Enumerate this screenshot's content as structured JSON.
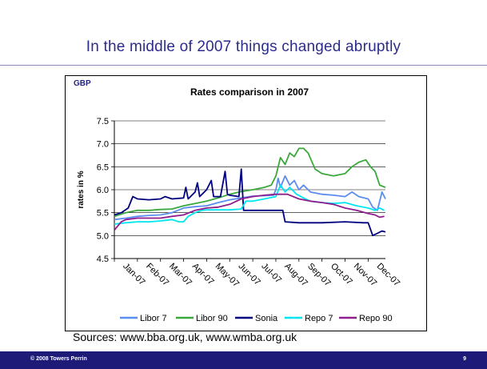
{
  "slide": {
    "title": "In the middle of 2007 things changed abruptly",
    "sources": "Sources: www.bba.org.uk, www.wmba.org.uk",
    "footer_left": "© 2008 Towers Perrin",
    "page_number": "9"
  },
  "chart_data": {
    "type": "line",
    "title": "Rates comparison in 2007",
    "corner_label": "GBP",
    "ylabel": "rates in %",
    "xlabel": "",
    "ylim": [
      4.5,
      7.5
    ],
    "yticks": [
      "4.5",
      "5.0",
      "5.5",
      "6.0",
      "6.5",
      "7.0",
      "7.5"
    ],
    "categories": [
      "Jan-07",
      "Feb-07",
      "Mar-07",
      "Apr-07",
      "May-07",
      "Jun-07",
      "Jul-07",
      "Aug-07",
      "Sep-07",
      "Oct-07",
      "Nov-07",
      "Dec-07"
    ],
    "grid": "horizontal",
    "legend": "bottom",
    "colors": {
      "Libor 7": "#5b8cf0",
      "Libor 90": "#3aa83a",
      "Sonia": "#000080",
      "Repo 7": "#00e6f0",
      "Repo 90": "#8e1e8e"
    },
    "series": [
      {
        "name": "Libor 7",
        "points": [
          [
            0,
            5.35
          ],
          [
            0.5,
            5.38
          ],
          [
            1,
            5.42
          ],
          [
            1.5,
            5.44
          ],
          [
            2,
            5.45
          ],
          [
            2.5,
            5.5
          ],
          [
            3,
            5.6
          ],
          [
            3.5,
            5.63
          ],
          [
            4,
            5.65
          ],
          [
            4.5,
            5.72
          ],
          [
            5,
            5.78
          ],
          [
            5.5,
            5.82
          ],
          [
            6,
            5.86
          ],
          [
            6.5,
            5.87
          ],
          [
            6.9,
            5.88
          ],
          [
            7.0,
            6.0
          ],
          [
            7.1,
            6.25
          ],
          [
            7.2,
            6.05
          ],
          [
            7.4,
            6.3
          ],
          [
            7.6,
            6.1
          ],
          [
            7.8,
            6.2
          ],
          [
            8.0,
            6.0
          ],
          [
            8.2,
            6.1
          ],
          [
            8.5,
            5.95
          ],
          [
            9,
            5.9
          ],
          [
            9.5,
            5.88
          ],
          [
            10,
            5.85
          ],
          [
            10.3,
            5.95
          ],
          [
            10.6,
            5.85
          ],
          [
            11,
            5.8
          ],
          [
            11.2,
            5.62
          ],
          [
            11.4,
            5.55
          ],
          [
            11.6,
            5.95
          ],
          [
            11.75,
            5.8
          ]
        ]
      },
      {
        "name": "Libor 90",
        "points": [
          [
            0,
            5.42
          ],
          [
            0.5,
            5.5
          ],
          [
            1,
            5.55
          ],
          [
            1.5,
            5.55
          ],
          [
            2,
            5.57
          ],
          [
            2.5,
            5.58
          ],
          [
            3,
            5.65
          ],
          [
            3.5,
            5.7
          ],
          [
            4,
            5.75
          ],
          [
            4.5,
            5.82
          ],
          [
            5,
            5.9
          ],
          [
            5.5,
            5.96
          ],
          [
            6,
            6.0
          ],
          [
            6.5,
            6.05
          ],
          [
            6.8,
            6.1
          ],
          [
            7.0,
            6.3
          ],
          [
            7.2,
            6.7
          ],
          [
            7.4,
            6.55
          ],
          [
            7.6,
            6.8
          ],
          [
            7.8,
            6.72
          ],
          [
            8.0,
            6.9
          ],
          [
            8.2,
            6.9
          ],
          [
            8.4,
            6.8
          ],
          [
            8.7,
            6.45
          ],
          [
            9,
            6.35
          ],
          [
            9.5,
            6.3
          ],
          [
            10,
            6.35
          ],
          [
            10.3,
            6.5
          ],
          [
            10.6,
            6.6
          ],
          [
            10.9,
            6.65
          ],
          [
            11.1,
            6.5
          ],
          [
            11.3,
            6.4
          ],
          [
            11.5,
            6.1
          ],
          [
            11.75,
            6.05
          ]
        ]
      },
      {
        "name": "Sonia",
        "points": [
          [
            0,
            5.45
          ],
          [
            0.3,
            5.5
          ],
          [
            0.6,
            5.6
          ],
          [
            0.8,
            5.85
          ],
          [
            1,
            5.8
          ],
          [
            1.5,
            5.78
          ],
          [
            2,
            5.8
          ],
          [
            2.2,
            5.85
          ],
          [
            2.5,
            5.8
          ],
          [
            3,
            5.82
          ],
          [
            3.1,
            6.05
          ],
          [
            3.2,
            5.8
          ],
          [
            3.5,
            5.95
          ],
          [
            3.6,
            6.15
          ],
          [
            3.7,
            5.85
          ],
          [
            4,
            6.0
          ],
          [
            4.2,
            6.2
          ],
          [
            4.3,
            5.85
          ],
          [
            4.6,
            5.85
          ],
          [
            4.8,
            6.4
          ],
          [
            4.9,
            5.9
          ],
          [
            5,
            5.88
          ],
          [
            5.4,
            5.85
          ],
          [
            5.5,
            6.45
          ],
          [
            5.6,
            5.55
          ],
          [
            6,
            5.55
          ],
          [
            6.5,
            5.55
          ],
          [
            7,
            5.55
          ],
          [
            7.3,
            5.55
          ],
          [
            7.4,
            5.3
          ],
          [
            8,
            5.28
          ],
          [
            9,
            5.28
          ],
          [
            10,
            5.3
          ],
          [
            10.8,
            5.28
          ],
          [
            11,
            5.28
          ],
          [
            11.2,
            5.0
          ],
          [
            11.4,
            5.05
          ],
          [
            11.6,
            5.1
          ],
          [
            11.75,
            5.08
          ]
        ]
      },
      {
        "name": "Repo 7",
        "points": [
          [
            0,
            5.25
          ],
          [
            0.5,
            5.28
          ],
          [
            1,
            5.3
          ],
          [
            1.5,
            5.3
          ],
          [
            2,
            5.32
          ],
          [
            2.5,
            5.35
          ],
          [
            2.8,
            5.3
          ],
          [
            3,
            5.3
          ],
          [
            3.2,
            5.42
          ],
          [
            3.5,
            5.5
          ],
          [
            3.8,
            5.55
          ],
          [
            4,
            5.56
          ],
          [
            5,
            5.56
          ],
          [
            5.5,
            5.58
          ],
          [
            5.7,
            5.75
          ],
          [
            6,
            5.75
          ],
          [
            6.5,
            5.8
          ],
          [
            7,
            5.85
          ],
          [
            7.2,
            6.1
          ],
          [
            7.4,
            5.95
          ],
          [
            7.6,
            6.05
          ],
          [
            7.9,
            5.9
          ],
          [
            8.2,
            5.82
          ],
          [
            8.5,
            5.75
          ],
          [
            9,
            5.72
          ],
          [
            9.5,
            5.7
          ],
          [
            10,
            5.72
          ],
          [
            10.5,
            5.65
          ],
          [
            11,
            5.6
          ],
          [
            11.3,
            5.55
          ],
          [
            11.5,
            5.6
          ],
          [
            11.7,
            5.55
          ]
        ]
      },
      {
        "name": "Repo 90",
        "points": [
          [
            0,
            5.12
          ],
          [
            0.3,
            5.3
          ],
          [
            0.5,
            5.35
          ],
          [
            1,
            5.38
          ],
          [
            2,
            5.38
          ],
          [
            2.5,
            5.42
          ],
          [
            3,
            5.45
          ],
          [
            3.5,
            5.55
          ],
          [
            4,
            5.6
          ],
          [
            4.5,
            5.62
          ],
          [
            5,
            5.68
          ],
          [
            5.5,
            5.8
          ],
          [
            6,
            5.85
          ],
          [
            6.5,
            5.88
          ],
          [
            7,
            5.9
          ],
          [
            7.5,
            5.9
          ],
          [
            8,
            5.8
          ],
          [
            8.5,
            5.75
          ],
          [
            9,
            5.72
          ],
          [
            9.5,
            5.68
          ],
          [
            10,
            5.6
          ],
          [
            10.5,
            5.55
          ],
          [
            11,
            5.48
          ],
          [
            11.3,
            5.45
          ],
          [
            11.5,
            5.4
          ],
          [
            11.7,
            5.42
          ]
        ]
      }
    ]
  }
}
